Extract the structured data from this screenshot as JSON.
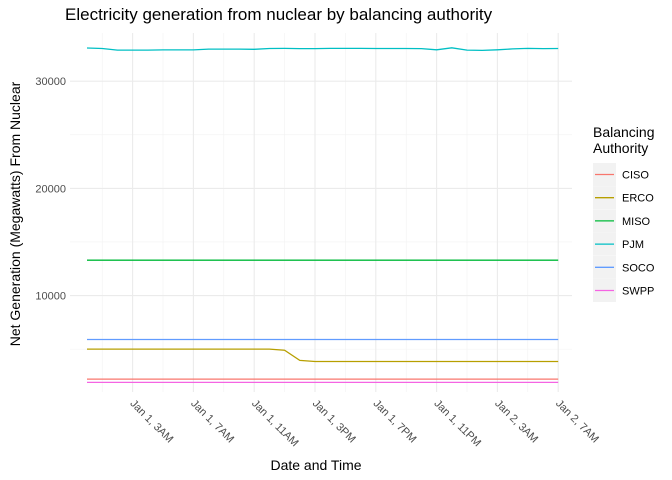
{
  "chart_data": {
    "type": "line",
    "title": "Electricity generation from nuclear by balancing authority",
    "xlabel": "Date and Time",
    "ylabel": "Net Generation (Megawatts) From Nuclear",
    "x_unit": "hour",
    "x": [
      "Jan 1, 12AM",
      "Jan 1, 1AM",
      "Jan 1, 2AM",
      "Jan 1, 3AM",
      "Jan 1, 4AM",
      "Jan 1, 5AM",
      "Jan 1, 6AM",
      "Jan 1, 7AM",
      "Jan 1, 8AM",
      "Jan 1, 9AM",
      "Jan 1, 10AM",
      "Jan 1, 11AM",
      "Jan 1, 12PM",
      "Jan 1, 1PM",
      "Jan 1, 2PM",
      "Jan 1, 3PM",
      "Jan 1, 4PM",
      "Jan 1, 5PM",
      "Jan 1, 6PM",
      "Jan 1, 7PM",
      "Jan 1, 8PM",
      "Jan 1, 9PM",
      "Jan 1, 10PM",
      "Jan 1, 11PM",
      "Jan 2, 12AM",
      "Jan 2, 1AM",
      "Jan 2, 2AM",
      "Jan 2, 3AM",
      "Jan 2, 4AM",
      "Jan 2, 5AM",
      "Jan 2, 6AM",
      "Jan 2, 7AM"
    ],
    "ylim": [
      1000,
      34500
    ],
    "y_ticks": [
      10000,
      20000,
      30000
    ],
    "y_tick_labels": [
      "10000",
      "20000",
      "30000"
    ],
    "x_ticks": [
      3,
      7,
      11,
      15,
      19,
      23,
      27,
      31
    ],
    "x_tick_labels": [
      "Jan  1,  3AM",
      "Jan  1,  7AM",
      "Jan  1, 11AM",
      "Jan  1,  3PM",
      "Jan  1,  7PM",
      "Jan  1, 11PM",
      "Jan  2,  3AM",
      "Jan  2,  7AM"
    ],
    "grid": true,
    "legend": {
      "title_lines": [
        "Balancing",
        "Authority"
      ],
      "position": "right"
    },
    "series": [
      {
        "name": "CISO",
        "color": "#F8766D",
        "values": [
          2200,
          2200,
          2200,
          2200,
          2200,
          2200,
          2200,
          2200,
          2200,
          2200,
          2200,
          2200,
          2200,
          2200,
          2200,
          2200,
          2200,
          2200,
          2200,
          2200,
          2200,
          2200,
          2200,
          2200,
          2200,
          2200,
          2200,
          2200,
          2200,
          2200,
          2200,
          2200
        ]
      },
      {
        "name": "ERCO",
        "color": "#B79F00",
        "values": [
          5000,
          5000,
          5000,
          5000,
          5000,
          5000,
          5000,
          5000,
          5000,
          5000,
          5000,
          5000,
          5000,
          4900,
          3950,
          3850,
          3850,
          3850,
          3850,
          3850,
          3850,
          3850,
          3850,
          3850,
          3850,
          3850,
          3850,
          3850,
          3850,
          3850,
          3850,
          3850
        ]
      },
      {
        "name": "MISO",
        "color": "#00BA38",
        "values": [
          13300,
          13300,
          13300,
          13300,
          13300,
          13300,
          13300,
          13300,
          13300,
          13300,
          13300,
          13300,
          13300,
          13300,
          13300,
          13300,
          13300,
          13300,
          13300,
          13300,
          13300,
          13300,
          13300,
          13300,
          13300,
          13300,
          13300,
          13300,
          13300,
          13300,
          13300,
          13300
        ]
      },
      {
        "name": "PJM",
        "color": "#00BFC4",
        "values": [
          33100,
          33050,
          32900,
          32900,
          32900,
          32920,
          32920,
          32920,
          33000,
          33000,
          33000,
          32980,
          33050,
          33060,
          33040,
          33040,
          33060,
          33060,
          33060,
          33050,
          33050,
          33050,
          33040,
          32930,
          33120,
          32900,
          32880,
          32930,
          33020,
          33060,
          33040,
          33050
        ]
      },
      {
        "name": "SOCO",
        "color": "#619CFF",
        "values": [
          5900,
          5900,
          5900,
          5900,
          5900,
          5900,
          5900,
          5900,
          5900,
          5900,
          5900,
          5900,
          5900,
          5900,
          5900,
          5900,
          5900,
          5900,
          5900,
          5900,
          5900,
          5900,
          5900,
          5900,
          5900,
          5900,
          5900,
          5900,
          5900,
          5900,
          5900,
          5900
        ]
      },
      {
        "name": "SWPP",
        "color": "#F564E3",
        "values": [
          1900,
          1900,
          1900,
          1900,
          1900,
          1900,
          1900,
          1900,
          1900,
          1900,
          1900,
          1900,
          1900,
          1900,
          1900,
          1900,
          1900,
          1900,
          1900,
          1900,
          1900,
          1900,
          1900,
          1900,
          1900,
          1900,
          1900,
          1900,
          1900,
          1900,
          1900,
          1900
        ]
      }
    ]
  }
}
